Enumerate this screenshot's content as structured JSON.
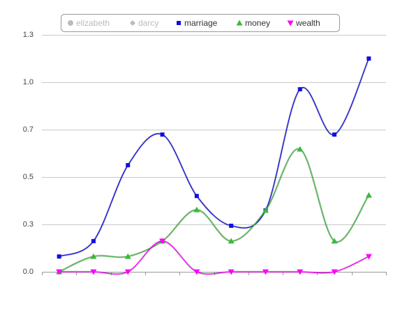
{
  "chart_data": {
    "type": "line",
    "categories": [
      null,
      null,
      null,
      null,
      null,
      null,
      null,
      null,
      null,
      null
    ],
    "series": [
      {
        "name": "elizabeth",
        "color": "#b0b0b0",
        "marker": "circle",
        "visible": false
      },
      {
        "name": "darcy",
        "color": "#b0b0b0",
        "marker": "diamond",
        "visible": false
      },
      {
        "name": "marriage",
        "color": "#1010e0",
        "marker": "square",
        "visible": true,
        "values": [
          0.081,
          0.162,
          0.5625,
          0.724,
          0.4,
          0.243,
          0.324,
          0.963,
          0.724,
          1.125
        ]
      },
      {
        "name": "money",
        "color": "#3cb83c",
        "marker": "triangle",
        "visible": true,
        "values": [
          0,
          0.081,
          0.081,
          0.162,
          0.327,
          0.162,
          0.324,
          0.647,
          0.162,
          0.404
        ]
      },
      {
        "name": "wealth",
        "color": "#ff00ff",
        "marker": "triangle-down",
        "visible": true,
        "values": [
          0,
          0,
          0,
          0.162,
          0,
          0,
          0,
          0,
          0,
          0.081
        ]
      }
    ],
    "ylim": [
      0,
      1.25
    ],
    "yticks": [
      {
        "value": 0,
        "label": "0.0"
      },
      {
        "value": 0.25,
        "label": "0.3"
      },
      {
        "value": 0.5,
        "label": "0.5"
      },
      {
        "value": 0.75,
        "label": "0.7"
      },
      {
        "value": 1.0,
        "label": "1.0"
      },
      {
        "value": 1.25,
        "label": "1.3"
      }
    ],
    "grid": true,
    "legend": "top"
  }
}
